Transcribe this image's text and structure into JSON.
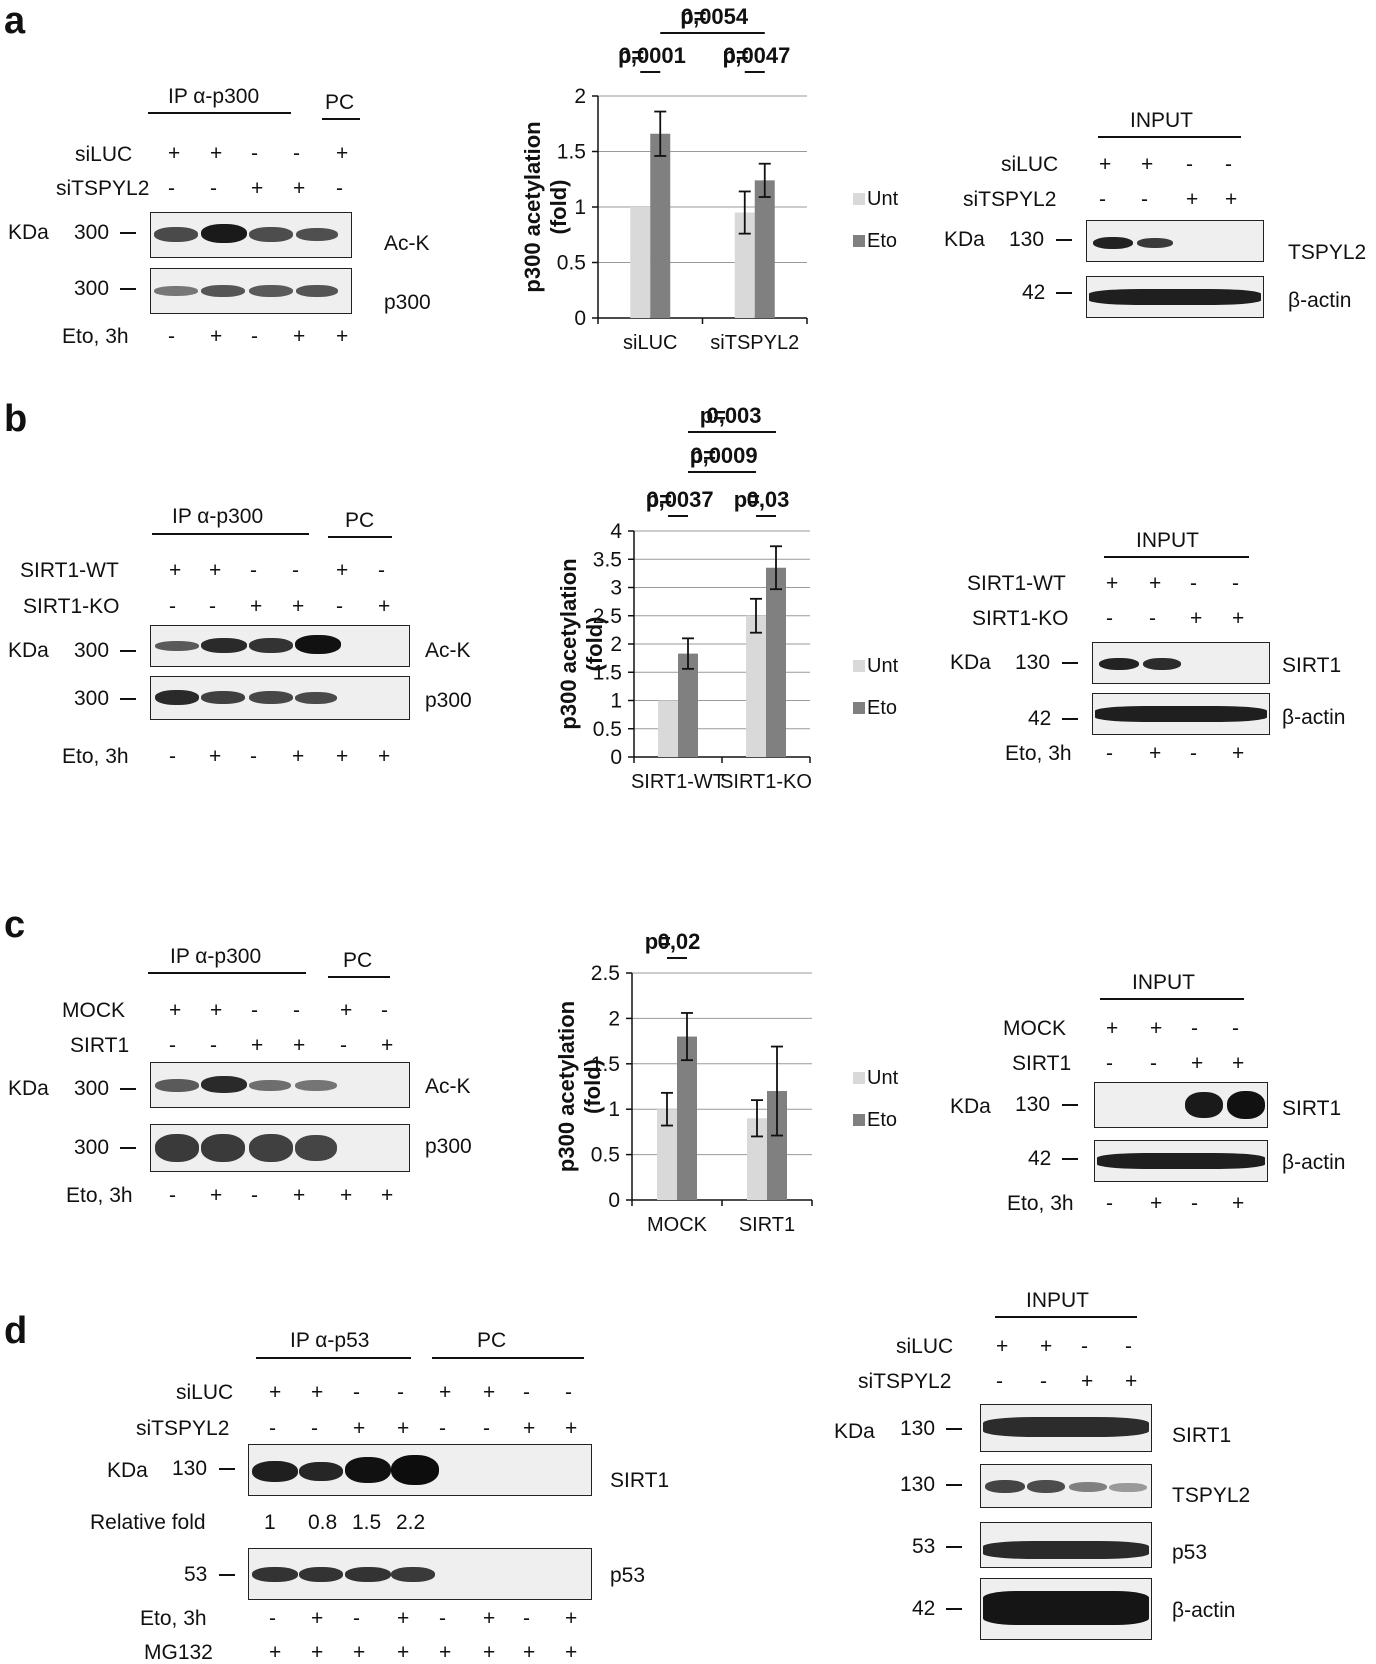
{
  "panels": {
    "a": {
      "letter": "a",
      "ip_title": "IP α-p300",
      "pc": "PC",
      "row1_label": "siLUC",
      "row2_label": "siTSPYL2",
      "treat_label": "Eto, 3h",
      "row1": [
        "+",
        "+",
        "-",
        "-",
        "+"
      ],
      "row2": [
        "-",
        "-",
        "+",
        "+",
        "-"
      ],
      "treat": [
        "-",
        "+",
        "-",
        "+",
        "+"
      ],
      "kda": "KDa",
      "mw_acK": "300",
      "mw_p300": "300",
      "blot1": "Ac-K",
      "blot2": "p300",
      "input": {
        "title": "INPUT",
        "row1_label": "siLUC",
        "row2_label": "siTSPYL2",
        "row1": [
          "+",
          "+",
          "-",
          "-"
        ],
        "row2": [
          "-",
          "-",
          "+",
          "+"
        ],
        "kda": "KDa",
        "mw1": "130",
        "mw2": "42",
        "blot1": "TSPYL2",
        "blot2": "β-actin"
      }
    },
    "b": {
      "letter": "b",
      "ip_title": "IP α-p300",
      "pc": "PC",
      "row1_label": "SIRT1-WT",
      "row2_label": "SIRT1-KO",
      "treat_label": "Eto, 3h",
      "row1": [
        "+",
        "+",
        "-",
        "-",
        "+",
        "-"
      ],
      "row2": [
        "-",
        "-",
        "+",
        "+",
        "-",
        "+"
      ],
      "treat": [
        "-",
        "+",
        "-",
        "+",
        "+",
        "+"
      ],
      "kda": "KDa",
      "mw_acK": "300",
      "mw_p300": "300",
      "blot1": "Ac-K",
      "blot2": "p300",
      "input": {
        "title": "INPUT",
        "row1_label": "SIRT1-WT",
        "row2_label": "SIRT1-KO",
        "treat_label": "Eto, 3h",
        "row1": [
          "+",
          "+",
          "-",
          "-"
        ],
        "row2": [
          "-",
          "-",
          "+",
          "+"
        ],
        "treat": [
          "-",
          "+",
          "-",
          "+"
        ],
        "kda": "KDa",
        "mw1": "130",
        "mw2": "42",
        "blot1": "SIRT1",
        "blot2": "β-actin"
      }
    },
    "c": {
      "letter": "c",
      "ip_title": "IP α-p300",
      "pc": "PC",
      "row1_label": "MOCK",
      "row2_label": "SIRT1",
      "treat_label": "Eto, 3h",
      "row1": [
        "+",
        "+",
        "-",
        "-",
        "+",
        "-"
      ],
      "row2": [
        "-",
        "-",
        "+",
        "+",
        "-",
        "+"
      ],
      "treat": [
        "-",
        "+",
        "-",
        "+",
        "+",
        "+"
      ],
      "kda": "KDa",
      "mw_acK": "300",
      "mw_p300": "300",
      "blot1": "Ac-K",
      "blot2": "p300",
      "input": {
        "title": "INPUT",
        "row1_label": "MOCK",
        "row2_label": "SIRT1",
        "treat_label": "Eto, 3h",
        "row1": [
          "+",
          "+",
          "-",
          "-"
        ],
        "row2": [
          "-",
          "-",
          "+",
          "+"
        ],
        "treat": [
          "-",
          "+",
          "-",
          "+"
        ],
        "kda": "KDa",
        "mw1": "130",
        "mw2": "42",
        "blot1": "SIRT1",
        "blot2": "β-actin"
      }
    },
    "d": {
      "letter": "d",
      "ip_title": "IP α-p53",
      "pc": "PC",
      "row1_label": "siLUC",
      "row2_label": "siTSPYL2",
      "treat_label": "Eto, 3h",
      "row4_label": "MG132",
      "row1": [
        "+",
        "+",
        "-",
        "-",
        "+",
        "+",
        "-",
        "-"
      ],
      "row2": [
        "-",
        "-",
        "+",
        "+",
        "-",
        "-",
        "+",
        "+"
      ],
      "treat": [
        "-",
        "+",
        "-",
        "+",
        "-",
        "+",
        "-",
        "+"
      ],
      "row4": [
        "+",
        "+",
        "+",
        "+",
        "+",
        "+",
        "+",
        "+"
      ],
      "kda": "KDa",
      "mw1": "130",
      "mw2": "53",
      "blot1": "SIRT1",
      "blot2": "p53",
      "rel_label": "Relative fold",
      "rel": [
        "1",
        "0.8",
        "1.5",
        "2.2"
      ],
      "input": {
        "title": "INPUT",
        "row1_label": "siLUC",
        "row2_label": "siTSPYL2",
        "row1": [
          "+",
          "+",
          "-",
          "-"
        ],
        "row2": [
          "-",
          "-",
          "+",
          "+"
        ],
        "kda": "KDa",
        "mw1": "130",
        "mw2": "130",
        "mw3": "53",
        "mw4": "42",
        "blot1": "SIRT1",
        "blot2": "TSPYL2",
        "blot3": "p53",
        "blot4": "β-actin"
      }
    }
  },
  "colors": {
    "unt": "#d9d9d9",
    "eto": "#808080",
    "ink": "#111111"
  },
  "chart_data": [
    {
      "type": "bar",
      "panel": "a",
      "ylabel": "p300 acetylation (fold)",
      "categories": [
        "siLUC",
        "siTSPYL2"
      ],
      "series": [
        {
          "name": "Unt",
          "values": [
            1.0,
            0.95
          ],
          "errors": [
            0,
            0.19
          ]
        },
        {
          "name": "Eto",
          "values": [
            1.66,
            1.24
          ],
          "errors": [
            0.2,
            0.15
          ]
        }
      ],
      "ylim": [
        0,
        2
      ],
      "yticks": [
        "0",
        "0.5",
        "1",
        "1.5",
        "2"
      ],
      "pvalues": [
        {
          "label": "p=",
          "value": "0,0001",
          "from": "siLUC/Unt",
          "to": "siLUC/Eto"
        },
        {
          "label": "p=",
          "value": "0,0047",
          "from": "siTSPYL2/Unt",
          "to": "siTSPYL2/Eto"
        },
        {
          "label": "p=",
          "value": "0,0054",
          "from": "siLUC/Eto",
          "to": "siTSPYL2/Eto"
        }
      ],
      "legend_position": "right"
    },
    {
      "type": "bar",
      "panel": "b",
      "ylabel": "p300 acetylation (fold)",
      "categories": [
        "SIRT1-WT",
        "SIRT1-KO"
      ],
      "series": [
        {
          "name": "Unt",
          "values": [
            1.0,
            2.5
          ],
          "errors": [
            0,
            0.3
          ]
        },
        {
          "name": "Eto",
          "values": [
            1.83,
            3.35
          ],
          "errors": [
            0.27,
            0.38
          ]
        }
      ],
      "ylim": [
        0,
        4
      ],
      "yticks": [
        "0",
        "0.5",
        "1",
        "1.5",
        "2",
        "2.5",
        "3",
        "3.5",
        "4"
      ],
      "pvalues": [
        {
          "label": "p=",
          "value": "0,0037",
          "from": "SIRT1-WT/Unt",
          "to": "SIRT1-WT/Eto"
        },
        {
          "label": "p=",
          "value": "0,03",
          "from": "SIRT1-KO/Unt",
          "to": "SIRT1-KO/Eto"
        },
        {
          "label": "p=",
          "value": "0,0009",
          "from": "SIRT1-WT/Eto",
          "to": "SIRT1-KO/Unt"
        },
        {
          "label": "p=",
          "value": "0,003",
          "from": "SIRT1-WT/Eto",
          "to": "SIRT1-KO/Eto"
        }
      ],
      "legend_position": "right"
    },
    {
      "type": "bar",
      "panel": "c",
      "ylabel": "p300 acetylation (fold)",
      "categories": [
        "MOCK",
        "SIRT1"
      ],
      "series": [
        {
          "name": "Unt",
          "values": [
            1.0,
            0.9
          ],
          "errors": [
            0.18,
            0.2
          ]
        },
        {
          "name": "Eto",
          "values": [
            1.8,
            1.2
          ],
          "errors": [
            0.26,
            0.49
          ]
        }
      ],
      "ylim": [
        0,
        2.5
      ],
      "yticks": [
        "0",
        "0.5",
        "1",
        "1.5",
        "2",
        "2.5"
      ],
      "pvalues": [
        {
          "label": "p=",
          "value": "0,02",
          "from": "MOCK/Unt",
          "to": "MOCK/Eto"
        }
      ],
      "legend_position": "right"
    }
  ]
}
